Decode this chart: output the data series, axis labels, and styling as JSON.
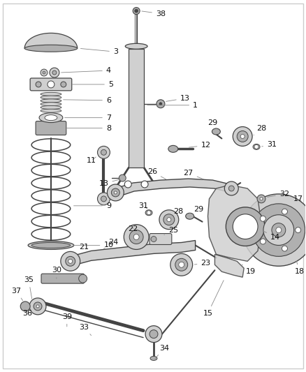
{
  "bg_color": "#ffffff",
  "fig_width": 4.38,
  "fig_height": 5.33,
  "line_color": "#444444",
  "part_fill": "#d0d0d0",
  "part_fill2": "#b0b0b0",
  "part_dark": "#888888",
  "white": "#ffffff"
}
